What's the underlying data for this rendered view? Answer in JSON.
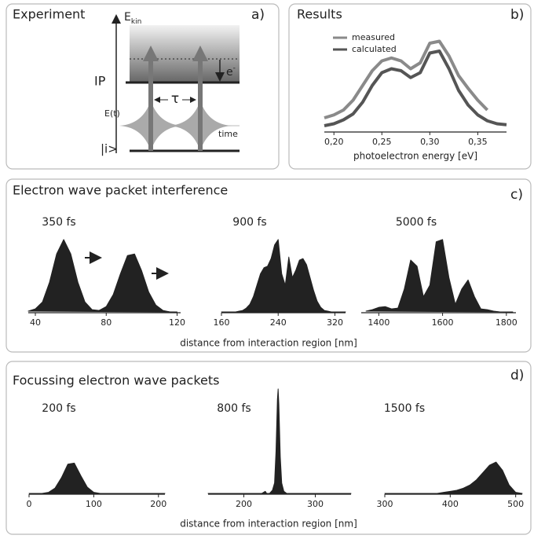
{
  "panels": [
    {
      "title": "Experiment",
      "letter": "a)"
    },
    {
      "title": "Results",
      "letter": "b)"
    },
    {
      "title": "Electron wave packet interference",
      "letter": "c)",
      "xlabel": "distance from interaction region [nm]"
    },
    {
      "title": "Focussing electron wave packets",
      "letter": "d)",
      "xlabel": "distance from interaction region [nm]"
    }
  ],
  "diagram": {
    "energy": "E",
    "energy_sub": "kin",
    "ip": "IP",
    "electron": "e",
    "electron_sup": "-",
    "tau": "τ",
    "field": "E(t)",
    "time": "time",
    "initial": "|i>"
  },
  "chart_data": [
    {
      "type": "line",
      "xlabel": "photoelectron energy [eV]",
      "x": [
        0.19,
        0.2,
        0.21,
        0.22,
        0.23,
        0.24,
        0.25,
        0.26,
        0.27,
        0.28,
        0.29,
        0.3,
        0.31,
        0.32,
        0.33,
        0.34,
        0.35,
        0.36,
        0.37,
        0.38
      ],
      "series": [
        {
          "name": "measured",
          "color": "#8a8a8a",
          "values": [
            0.12,
            0.15,
            0.2,
            0.3,
            0.45,
            0.6,
            0.7,
            0.73,
            0.7,
            0.62,
            0.68,
            0.88,
            0.9,
            0.75,
            0.55,
            0.42,
            0.3,
            0.2,
            null,
            null
          ]
        },
        {
          "name": "calculated",
          "color": "#555555",
          "values": [
            0.04,
            0.06,
            0.1,
            0.16,
            0.28,
            0.45,
            0.58,
            0.62,
            0.6,
            0.53,
            0.58,
            0.78,
            0.8,
            0.62,
            0.4,
            0.25,
            0.15,
            0.09,
            0.06,
            0.05
          ]
        }
      ],
      "xlim": [
        0.19,
        0.38
      ],
      "ylim": [
        0,
        1
      ],
      "xticks": [
        {
          "value": 0.2,
          "label": "0,20"
        },
        {
          "value": 0.25,
          "label": "0,25"
        },
        {
          "value": 0.3,
          "label": "0,30"
        },
        {
          "value": 0.35,
          "label": "0,35"
        }
      ]
    },
    {
      "type": "area",
      "title": "350 fs",
      "color": "#222222",
      "x": [
        32,
        36,
        40,
        44,
        48,
        52,
        56,
        60,
        64,
        68,
        72,
        76,
        80,
        84,
        88,
        92,
        96,
        100,
        104,
        108,
        112,
        116,
        120
      ],
      "values": [
        0,
        0.01,
        0.04,
        0.13,
        0.39,
        0.76,
        0.95,
        0.76,
        0.39,
        0.13,
        0.03,
        0.02,
        0.07,
        0.23,
        0.5,
        0.74,
        0.76,
        0.54,
        0.26,
        0.09,
        0.02,
        0,
        0
      ],
      "xlim": [
        36,
        122
      ],
      "ylim": [
        0,
        1
      ],
      "xticks": [
        40,
        80,
        120
      ]
    },
    {
      "type": "area",
      "title": "900 fs",
      "color": "#222222",
      "x": [
        160,
        165,
        170,
        175,
        180,
        185,
        190,
        195,
        200,
        205,
        210,
        215,
        220,
        225,
        230,
        235,
        240,
        245,
        250,
        255,
        260,
        265,
        270,
        275,
        280,
        285,
        290,
        295,
        300,
        305,
        310,
        315,
        320,
        325,
        330,
        335
      ],
      "values": [
        0,
        0,
        0,
        0,
        0,
        0.01,
        0.02,
        0.05,
        0.1,
        0.2,
        0.35,
        0.5,
        0.58,
        0.6,
        0.7,
        0.88,
        0.95,
        0.5,
        0.35,
        0.72,
        0.45,
        0.55,
        0.68,
        0.7,
        0.62,
        0.45,
        0.28,
        0.14,
        0.06,
        0.02,
        0.01,
        0,
        0,
        0,
        0,
        0
      ],
      "xlim": [
        160,
        335
      ],
      "ylim": [
        0,
        1
      ],
      "xticks": [
        160,
        240,
        320
      ]
    },
    {
      "type": "area",
      "title": "5000 fs",
      "color": "#222222",
      "x": [
        1340,
        1360,
        1380,
        1400,
        1420,
        1440,
        1460,
        1480,
        1500,
        1520,
        1540,
        1560,
        1580,
        1600,
        1620,
        1640,
        1660,
        1680,
        1700,
        1720,
        1740,
        1760,
        1780,
        1800,
        1820
      ],
      "values": [
        0,
        0.01,
        0.03,
        0.06,
        0.07,
        0.04,
        0.05,
        0.3,
        0.68,
        0.6,
        0.2,
        0.35,
        0.92,
        0.95,
        0.45,
        0.1,
        0.3,
        0.42,
        0.2,
        0.04,
        0.03,
        0.01,
        0,
        0,
        0
      ],
      "xlim": [
        1345,
        1830
      ],
      "ylim": [
        0,
        1
      ],
      "xticks": [
        1400,
        1600,
        1800
      ]
    },
    {
      "type": "area",
      "title": "200 fs",
      "color": "#222222",
      "x": [
        0,
        10,
        20,
        30,
        40,
        50,
        60,
        70,
        80,
        90,
        100,
        110,
        120,
        130,
        140,
        150,
        160,
        170,
        180,
        190,
        200,
        210
      ],
      "values": [
        0,
        0,
        0,
        0.01,
        0.05,
        0.15,
        0.28,
        0.29,
        0.17,
        0.06,
        0.01,
        0,
        0,
        0,
        0,
        0,
        0,
        0,
        0,
        0,
        0,
        0
      ],
      "xlim": [
        0,
        210
      ],
      "ylim": [
        0,
        1
      ],
      "xticks": [
        0,
        100,
        200
      ]
    },
    {
      "type": "area",
      "title": "800 fs",
      "color": "#222222",
      "x": [
        150,
        200,
        225,
        230,
        232,
        236,
        240,
        243,
        245,
        247,
        248,
        249,
        251,
        253,
        256,
        260,
        280,
        350
      ],
      "values": [
        0,
        0,
        0,
        0.02,
        0,
        0,
        0.03,
        0.1,
        0.4,
        0.9,
        1.0,
        0.85,
        0.35,
        0.1,
        0.02,
        0,
        0,
        0
      ],
      "xlim": [
        150,
        350
      ],
      "ylim": [
        0,
        1
      ],
      "xticks": [
        200,
        300
      ]
    },
    {
      "type": "area",
      "title": "1500 fs",
      "color": "#222222",
      "x": [
        300,
        310,
        320,
        330,
        340,
        350,
        360,
        370,
        380,
        390,
        400,
        410,
        420,
        430,
        440,
        450,
        460,
        470,
        480,
        490,
        500,
        510
      ],
      "values": [
        0,
        0,
        0,
        0,
        0,
        0,
        0,
        0,
        0,
        0.01,
        0.02,
        0.03,
        0.05,
        0.08,
        0.13,
        0.2,
        0.27,
        0.3,
        0.22,
        0.08,
        0.01,
        0
      ],
      "xlim": [
        300,
        510
      ],
      "ylim": [
        0,
        1
      ],
      "xticks": [
        300,
        400,
        500
      ]
    }
  ]
}
